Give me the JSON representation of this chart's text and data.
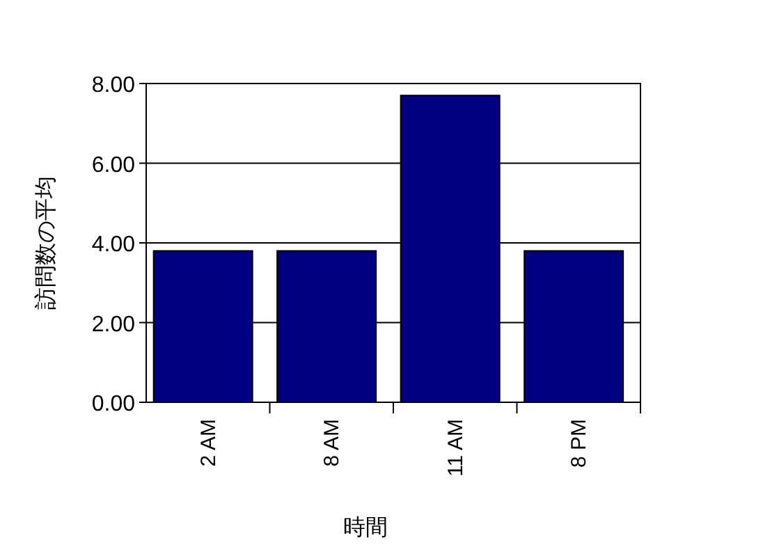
{
  "chart_data": {
    "type": "bar",
    "xlabel": "時間",
    "ylabel": "訪問数の平均",
    "categories": [
      "2 AM",
      "8 AM",
      "11 AM",
      "8 PM"
    ],
    "values": [
      3.8,
      3.8,
      7.7,
      3.8
    ],
    "color": "#000080",
    "ylim": [
      0,
      8
    ],
    "yticks": [
      {
        "value": 0,
        "label": "0.00"
      },
      {
        "value": 2,
        "label": "2.00"
      },
      {
        "value": 4,
        "label": "4.00"
      },
      {
        "value": 6,
        "label": "6.00"
      },
      {
        "value": 8,
        "label": "8.00"
      }
    ],
    "grid": "y"
  }
}
